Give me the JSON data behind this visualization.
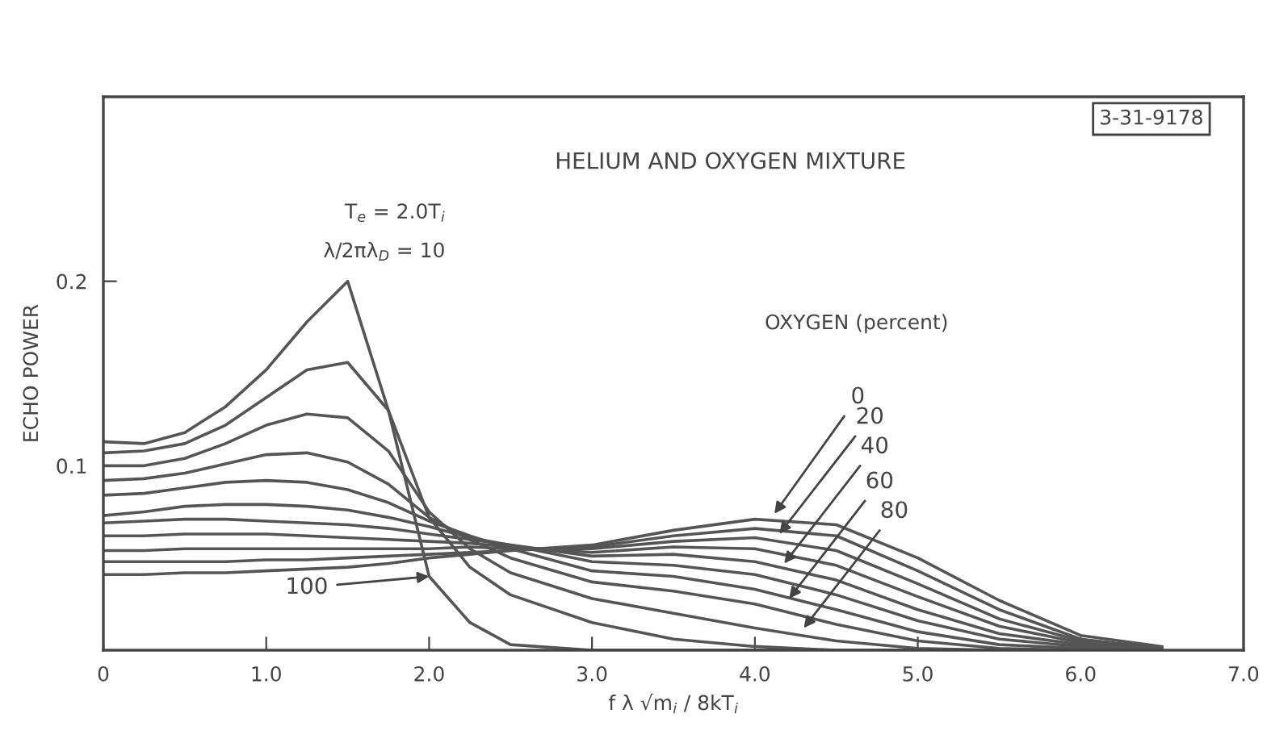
{
  "chart_data": {
    "type": "line",
    "title": "HELIUM AND OXYGEN MIXTURE",
    "xlabel": "f λ √m$_{i}$ / 8kT$_{i}$",
    "ylabel": "ECHO POWER",
    "x": [
      0,
      0.25,
      0.5,
      0.75,
      1.0,
      1.25,
      1.5,
      1.75,
      2.0,
      2.25,
      2.5,
      3.0,
      3.5,
      4.0,
      4.5,
      5.0,
      5.5,
      6.0,
      6.5
    ],
    "xlim": [
      0,
      7
    ],
    "xticks": [
      0,
      {
        "value": 1,
        "label": "1.0"
      },
      {
        "value": 2,
        "label": "2.0"
      },
      {
        "value": 3,
        "label": "3.0"
      },
      {
        "value": 4,
        "label": "4.0"
      },
      {
        "value": 5,
        "label": "5.0"
      },
      {
        "value": 6,
        "label": "6.0"
      },
      {
        "value": 7,
        "label": "7.0"
      }
    ],
    "ylim": [
      0,
      0.3
    ],
    "yticks": [
      0.1,
      0.2
    ],
    "grid": false,
    "legend": false,
    "marker": "none",
    "line_style": "solid",
    "series": [
      {
        "color": "#555555",
        "values": [
          0.113,
          0.112,
          0.118,
          0.132,
          0.152,
          0.178,
          0.2,
          0.13,
          0.04,
          0.015,
          0.003,
          0,
          0,
          0,
          0,
          0,
          0,
          0,
          0
        ]
      },
      {
        "color": "#555555",
        "values": [
          0.107,
          0.108,
          0.112,
          0.122,
          0.137,
          0.152,
          0.156,
          0.13,
          0.072,
          0.045,
          0.03,
          0.015,
          0.006,
          0.002,
          0,
          0,
          0,
          0,
          0
        ]
      },
      {
        "color": "#555555",
        "values": [
          0.1,
          0.1,
          0.104,
          0.112,
          0.122,
          0.128,
          0.126,
          0.108,
          0.075,
          0.055,
          0.042,
          0.028,
          0.02,
          0.012,
          0.005,
          0.001,
          0,
          0,
          0
        ]
      },
      {
        "color": "#555555",
        "values": [
          0.092,
          0.093,
          0.096,
          0.101,
          0.106,
          0.107,
          0.102,
          0.09,
          0.072,
          0.06,
          0.05,
          0.037,
          0.032,
          0.025,
          0.014,
          0.005,
          0.001,
          0,
          0
        ]
      },
      {
        "color": "#555555",
        "values": [
          0.084,
          0.085,
          0.088,
          0.091,
          0.092,
          0.091,
          0.087,
          0.08,
          0.07,
          0.062,
          0.055,
          0.043,
          0.04,
          0.033,
          0.022,
          0.01,
          0.003,
          0.001,
          0
        ]
      },
      {
        "color": "#555555",
        "values": [
          0.073,
          0.075,
          0.078,
          0.079,
          0.079,
          0.078,
          0.076,
          0.072,
          0.067,
          0.061,
          0.057,
          0.048,
          0.046,
          0.041,
          0.03,
          0.016,
          0.006,
          0.002,
          0
        ]
      },
      {
        "color": "#555555",
        "values": [
          0.069,
          0.07,
          0.071,
          0.071,
          0.07,
          0.069,
          0.068,
          0.066,
          0.063,
          0.06,
          0.057,
          0.051,
          0.052,
          0.048,
          0.038,
          0.022,
          0.009,
          0.003,
          0
        ]
      },
      {
        "color": "#555555",
        "values": [
          0.062,
          0.062,
          0.063,
          0.063,
          0.063,
          0.062,
          0.061,
          0.06,
          0.059,
          0.058,
          0.056,
          0.053,
          0.056,
          0.055,
          0.046,
          0.029,
          0.013,
          0.004,
          0.001
        ]
      },
      {
        "color": "#555555",
        "values": [
          0.054,
          0.054,
          0.055,
          0.055,
          0.055,
          0.055,
          0.055,
          0.055,
          0.055,
          0.056,
          0.055,
          0.055,
          0.059,
          0.061,
          0.054,
          0.036,
          0.017,
          0.005,
          0.001
        ]
      },
      {
        "color": "#555555",
        "values": [
          0.048,
          0.048,
          0.048,
          0.048,
          0.049,
          0.049,
          0.05,
          0.051,
          0.052,
          0.053,
          0.054,
          0.056,
          0.062,
          0.066,
          0.062,
          0.043,
          0.022,
          0.006,
          0.001
        ]
      },
      {
        "color": "#555555",
        "values": [
          0.041,
          0.041,
          0.042,
          0.042,
          0.043,
          0.044,
          0.045,
          0.047,
          0.05,
          0.052,
          0.054,
          0.057,
          0.065,
          0.071,
          0.068,
          0.05,
          0.027,
          0.008,
          0.002
        ]
      }
    ],
    "annotations": [
      "3-31-9178",
      "T$_{e}$ = 2.0T$_{i}$",
      "λ/2πλ$_{D}$ = 10",
      "OXYGEN (percent)",
      {
        "text": "0",
        "x": 4.12,
        "y": 0.074
      },
      {
        "text": "20",
        "x": 4.15,
        "y": 0.063
      },
      {
        "text": "40",
        "x": 4.18,
        "y": 0.047
      },
      {
        "text": "60",
        "x": 4.21,
        "y": 0.028
      },
      {
        "text": "80",
        "x": 4.3,
        "y": 0.012
      },
      {
        "text": "100",
        "x": 2.0,
        "y": 0.04
      }
    ]
  }
}
